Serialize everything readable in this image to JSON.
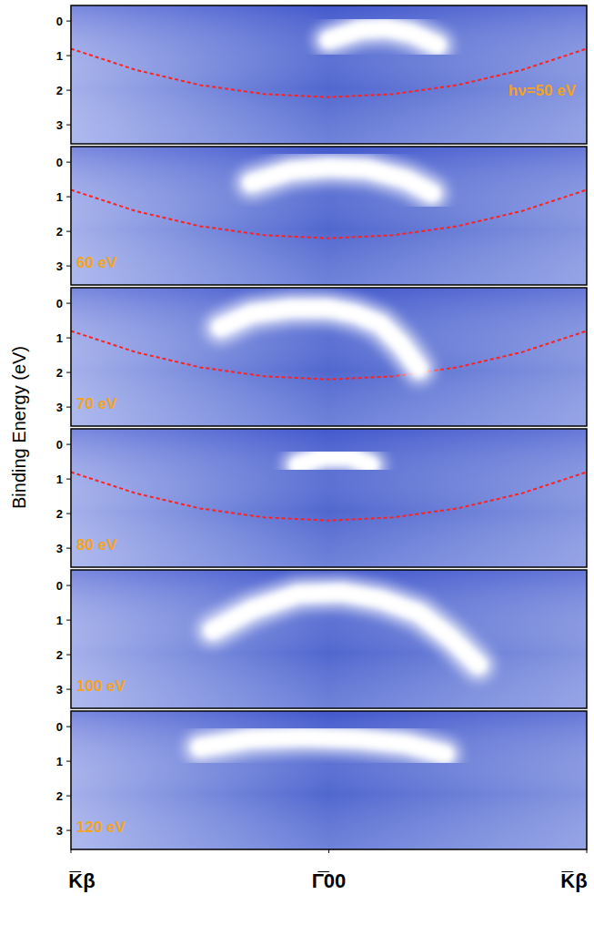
{
  "figure": {
    "ylabel": "Binding Energy (eV)"
  },
  "chart_data": [
    {
      "type": "line",
      "title": "hν=50 eV",
      "xlim": [
        -1,
        1
      ],
      "ylim": [
        -0.45,
        3.55
      ],
      "yticks": [
        0,
        1,
        2,
        3
      ],
      "tick_labels": "y",
      "series": [
        {
          "x": [
            -1,
            -0.75,
            -0.5,
            -0.25,
            0,
            0.25,
            0.5,
            0.75,
            1
          ],
          "values": [
            0.8,
            1.41,
            1.85,
            2.11,
            2.2,
            2.11,
            1.85,
            1.41,
            0.8
          ],
          "color": "#ff2020",
          "line_style": "dashed"
        },
        {
          "x": [
            0.0,
            0.12,
            0.22,
            0.32,
            0.42
          ],
          "values": [
            0.55,
            0.25,
            0.2,
            0.35,
            0.7
          ],
          "color": "#ffffff",
          "line_style": "solid"
        }
      ]
    },
    {
      "type": "line",
      "title": "60 eV",
      "xlim": [
        -1,
        1
      ],
      "ylim": [
        -0.45,
        3.55
      ],
      "yticks": [
        0,
        1,
        2,
        3
      ],
      "tick_labels": "y",
      "series": [
        {
          "x": [
            -1,
            -0.75,
            -0.5,
            -0.25,
            0,
            0.25,
            0.5,
            0.75,
            1
          ],
          "values": [
            0.8,
            1.41,
            1.85,
            2.11,
            2.2,
            2.11,
            1.85,
            1.41,
            0.8
          ],
          "color": "#ff2020",
          "line_style": "dashed"
        },
        {
          "x": [
            -0.3,
            -0.15,
            0,
            0.15,
            0.3,
            0.4
          ],
          "values": [
            0.6,
            0.25,
            0.15,
            0.2,
            0.5,
            0.9
          ],
          "color": "#ffffff",
          "line_style": "solid"
        }
      ]
    },
    {
      "type": "line",
      "title": "70 eV",
      "xlim": [
        -1,
        1
      ],
      "ylim": [
        -0.45,
        3.55
      ],
      "yticks": [
        0,
        1,
        2,
        3
      ],
      "tick_labels": "y",
      "series": [
        {
          "x": [
            -1,
            -0.75,
            -0.5,
            -0.25,
            0,
            0.25,
            0.5,
            0.75,
            1
          ],
          "values": [
            0.8,
            1.41,
            1.85,
            2.11,
            2.2,
            2.11,
            1.85,
            1.41,
            0.8
          ],
          "color": "#ff2020",
          "line_style": "dashed"
        },
        {
          "x": [
            -0.42,
            -0.3,
            -0.15,
            0,
            0.1,
            0.2,
            0.28,
            0.35
          ],
          "values": [
            0.7,
            0.3,
            0.15,
            0.15,
            0.3,
            0.6,
            1.2,
            1.9
          ],
          "color": "#ffffff",
          "line_style": "solid"
        }
      ]
    },
    {
      "type": "line",
      "title": "80 eV",
      "xlim": [
        -1,
        1
      ],
      "ylim": [
        -0.45,
        3.55
      ],
      "yticks": [
        0,
        1,
        2,
        3
      ],
      "tick_labels": "y",
      "series": [
        {
          "x": [
            -1,
            -0.75,
            -0.5,
            -0.25,
            0,
            0.25,
            0.5,
            0.75,
            1
          ],
          "values": [
            0.8,
            1.41,
            1.85,
            2.11,
            2.2,
            2.11,
            1.85,
            1.41,
            0.8
          ],
          "color": "#ff2020",
          "line_style": "dashed"
        },
        {
          "x": [
            -0.12,
            -0.02,
            0.08,
            0.16
          ],
          "values": [
            0.6,
            0.35,
            0.35,
            0.6
          ],
          "color": "#ffffff",
          "line_style": "solid"
        }
      ]
    },
    {
      "type": "line",
      "title": "100 eV",
      "xlim": [
        -1,
        1
      ],
      "ylim": [
        -0.45,
        3.55
      ],
      "yticks": [
        0,
        1,
        2,
        3
      ],
      "tick_labels": "y",
      "series": [
        {
          "x": [
            -0.45,
            -0.3,
            -0.12,
            0.05,
            0.2,
            0.35,
            0.47,
            0.58
          ],
          "values": [
            1.3,
            0.7,
            0.25,
            0.2,
            0.4,
            0.8,
            1.5,
            2.3
          ],
          "color": "#ffffff",
          "line_style": "solid"
        }
      ]
    },
    {
      "type": "line",
      "title": "120 eV",
      "xlim": [
        -1,
        1
      ],
      "ylim": [
        -0.45,
        3.55
      ],
      "yticks": [
        0,
        1,
        2,
        3
      ],
      "xticks": [
        {
          "value": -1,
          "label": "K̅β"
        },
        {
          "value": 0,
          "label": "Γ̅00"
        },
        {
          "value": 1,
          "label": "K̅β"
        }
      ],
      "series": [
        {
          "x": [
            -0.5,
            -0.3,
            -0.1,
            0.1,
            0.3,
            0.45
          ],
          "values": [
            0.6,
            0.35,
            0.3,
            0.35,
            0.5,
            0.8
          ],
          "color": "#ffffff",
          "line_style": "solid"
        }
      ]
    }
  ]
}
